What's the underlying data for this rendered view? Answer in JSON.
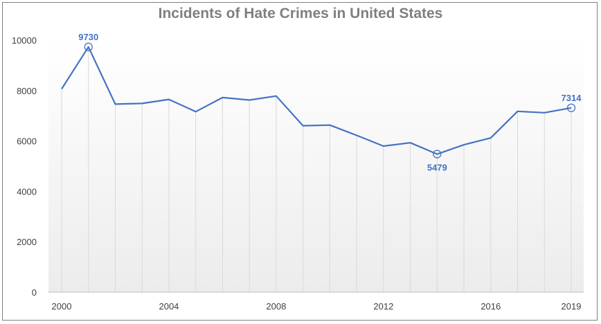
{
  "chart_data": {
    "type": "line",
    "title": "Incidents of Hate Crimes in United States",
    "xlabel": "",
    "ylabel": "",
    "x": [
      2000,
      2001,
      2002,
      2003,
      2004,
      2005,
      2006,
      2007,
      2008,
      2009,
      2010,
      2011,
      2012,
      2013,
      2014,
      2015,
      2016,
      2017,
      2018,
      2019
    ],
    "series": [
      {
        "values": [
          8063,
          9730,
          7462,
          7489,
          7649,
          7163,
          7722,
          7624,
          7783,
          6604,
          6628,
          6222,
          5796,
          5928,
          5479,
          5850,
          6121,
          7175,
          7120,
          7314
        ]
      }
    ],
    "ylim": [
      0,
      10000
    ],
    "y_ticks": [
      "0",
      "2000",
      "4000",
      "6000",
      "8000",
      "10000"
    ],
    "x_ticks": [
      "2000",
      "2004",
      "2008",
      "2012",
      "2016",
      "2019"
    ],
    "data_labels": [
      {
        "x": 2001,
        "text": "9730",
        "position": "above"
      },
      {
        "x": 2014,
        "text": "5479",
        "position": "below"
      },
      {
        "x": 2019,
        "text": "7314",
        "position": "above"
      }
    ],
    "grid": "vertical",
    "legend": "none",
    "colors": {
      "line": "#4472c4",
      "title": "#7f7f7f",
      "grid": "#d9d9d9",
      "axis": "#bfbfbf"
    }
  }
}
